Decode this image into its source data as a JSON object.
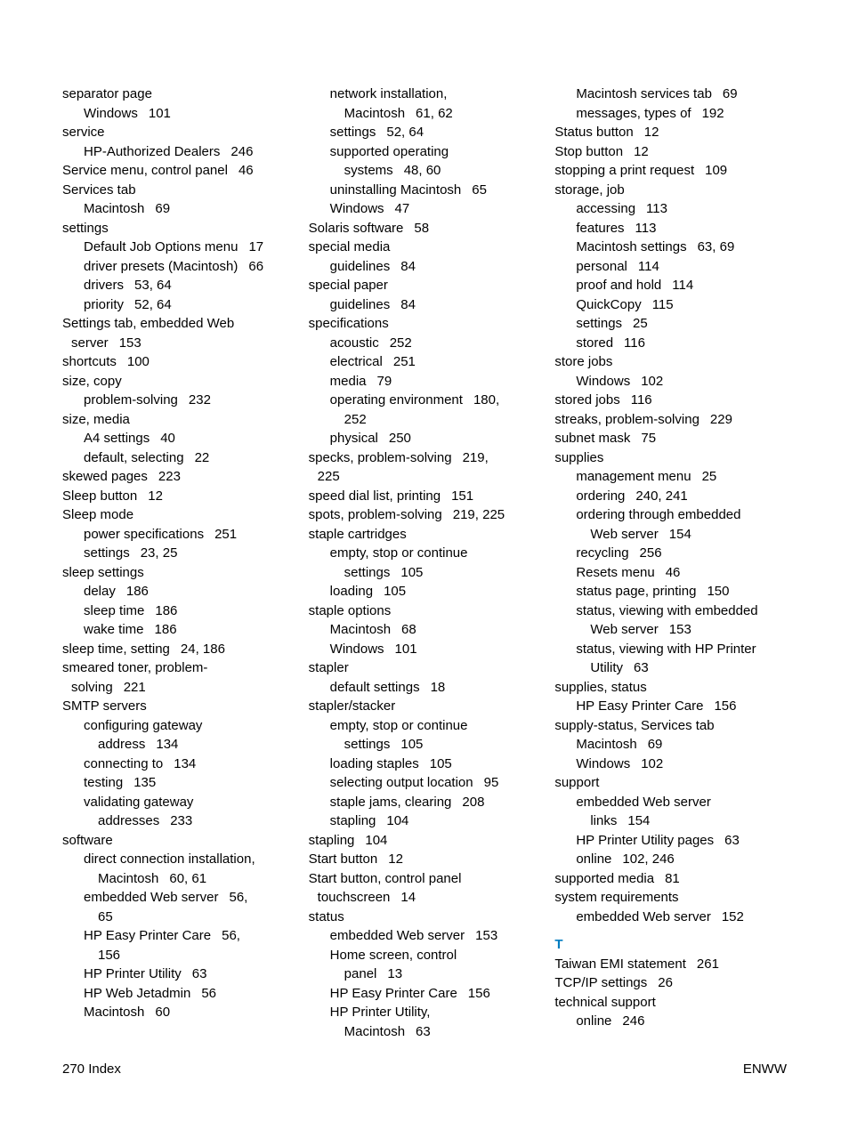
{
  "footer": {
    "left": "270   Index",
    "right": "ENWW"
  },
  "sections": {
    "T": "T"
  },
  "col1": [
    {
      "t": "separator page",
      "i": 0
    },
    {
      "t": "Windows",
      "p": "101",
      "i": 1
    },
    {
      "t": "service",
      "i": 0
    },
    {
      "t": "HP-Authorized Dealers",
      "p": "246",
      "i": 1
    },
    {
      "t": "Service menu, control panel",
      "p": "46",
      "i": 0
    },
    {
      "t": "Services tab",
      "i": 0
    },
    {
      "t": "Macintosh",
      "p": "69",
      "i": 1
    },
    {
      "t": "settings",
      "i": 0
    },
    {
      "t": "Default Job Options menu",
      "p": "17",
      "i": 1
    },
    {
      "t": "driver presets (Macintosh)",
      "p": "66",
      "i": 1
    },
    {
      "t": "drivers",
      "p": "53,  64",
      "i": 1
    },
    {
      "t": "priority",
      "p": "52,  64",
      "i": 1
    },
    {
      "t": "Settings tab, embedded Web",
      "i": 0
    },
    {
      "t": "server",
      "p": "153",
      "i": "1w"
    },
    {
      "t": "shortcuts",
      "p": "100",
      "i": 0
    },
    {
      "t": "size, copy",
      "i": 0
    },
    {
      "t": "problem-solving",
      "p": "232",
      "i": 1
    },
    {
      "t": "size, media",
      "i": 0
    },
    {
      "t": "A4 settings",
      "p": "40",
      "i": 1
    },
    {
      "t": "default, selecting",
      "p": "22",
      "i": 1
    },
    {
      "t": "skewed pages",
      "p": "223",
      "i": 0
    },
    {
      "t": "Sleep button",
      "p": "12",
      "i": 0
    },
    {
      "t": "Sleep mode",
      "i": 0
    },
    {
      "t": "power specifications",
      "p": "251",
      "i": 1
    },
    {
      "t": "settings",
      "p": "23,  25",
      "i": 1
    },
    {
      "t": "sleep settings",
      "i": 0
    },
    {
      "t": "delay",
      "p": "186",
      "i": 1
    },
    {
      "t": "sleep time",
      "p": "186",
      "i": 1
    },
    {
      "t": "wake time",
      "p": "186",
      "i": 1
    },
    {
      "t": "sleep time, setting",
      "p": "24,  186",
      "i": 0
    },
    {
      "t": "smeared toner, problem-",
      "i": 0
    },
    {
      "t": "solving",
      "p": "221",
      "i": "1w"
    },
    {
      "t": "SMTP servers",
      "i": 0
    },
    {
      "t": "configuring gateway",
      "i": 1
    },
    {
      "t": "address",
      "p": "134",
      "i": 2
    },
    {
      "t": "connecting to",
      "p": "134",
      "i": 1
    },
    {
      "t": "testing",
      "p": "135",
      "i": 1
    },
    {
      "t": "validating gateway",
      "i": 1
    },
    {
      "t": "addresses",
      "p": "233",
      "i": 2
    },
    {
      "t": "software",
      "i": 0
    },
    {
      "t": "direct connection installation,",
      "i": 1
    },
    {
      "t": "Macintosh",
      "p": "60,  61",
      "i": 2
    },
    {
      "t": "embedded Web server",
      "p": "56,",
      "i": 1
    },
    {
      "t": "65",
      "i": 2
    },
    {
      "t": "HP Easy Printer Care",
      "p": "56,",
      "i": 1
    },
    {
      "t": "156",
      "i": 2
    },
    {
      "t": "HP Printer Utility",
      "p": "63",
      "i": 1
    },
    {
      "t": "HP Web Jetadmin",
      "p": "56",
      "i": 1
    },
    {
      "t": "Macintosh",
      "p": "60",
      "i": 1
    }
  ],
  "col2": [
    {
      "t": "network installation,",
      "i": 1
    },
    {
      "t": "Macintosh",
      "p": "61,  62",
      "i": 2
    },
    {
      "t": "settings",
      "p": "52,  64",
      "i": 1
    },
    {
      "t": "supported operating",
      "i": 1
    },
    {
      "t": "systems",
      "p": "48,  60",
      "i": 2
    },
    {
      "t": "uninstalling Macintosh",
      "p": "65",
      "i": 1
    },
    {
      "t": "Windows",
      "p": "47",
      "i": 1
    },
    {
      "t": "Solaris software",
      "p": "58",
      "i": 0
    },
    {
      "t": "special media",
      "i": 0
    },
    {
      "t": "guidelines",
      "p": "84",
      "i": 1
    },
    {
      "t": "special paper",
      "i": 0
    },
    {
      "t": "guidelines",
      "p": "84",
      "i": 1
    },
    {
      "t": "specifications",
      "i": 0
    },
    {
      "t": "acoustic",
      "p": "252",
      "i": 1
    },
    {
      "t": "electrical",
      "p": "251",
      "i": 1
    },
    {
      "t": "media",
      "p": "79",
      "i": 1
    },
    {
      "t": "operating environment",
      "p": "180,",
      "i": 1
    },
    {
      "t": "252",
      "i": 2
    },
    {
      "t": "physical",
      "p": "250",
      "i": 1
    },
    {
      "t": "specks, problem-solving",
      "p": "219,",
      "i": 0
    },
    {
      "t": "225",
      "i": "1w"
    },
    {
      "t": "speed dial list, printing",
      "p": "151",
      "i": 0
    },
    {
      "t": "spots, problem-solving",
      "p": "219,  225",
      "i": 0
    },
    {
      "t": "staple cartridges",
      "i": 0
    },
    {
      "t": "empty, stop or continue",
      "i": 1
    },
    {
      "t": "settings",
      "p": "105",
      "i": 2
    },
    {
      "t": "loading",
      "p": "105",
      "i": 1
    },
    {
      "t": "staple options",
      "i": 0
    },
    {
      "t": "Macintosh",
      "p": "68",
      "i": 1
    },
    {
      "t": "Windows",
      "p": "101",
      "i": 1
    },
    {
      "t": "stapler",
      "i": 0
    },
    {
      "t": "default settings",
      "p": "18",
      "i": 1
    },
    {
      "t": "stapler/stacker",
      "i": 0
    },
    {
      "t": "empty, stop or continue",
      "i": 1
    },
    {
      "t": "settings",
      "p": "105",
      "i": 2
    },
    {
      "t": "loading staples",
      "p": "105",
      "i": 1
    },
    {
      "t": "selecting output location",
      "p": "95",
      "i": 1
    },
    {
      "t": "staple jams, clearing",
      "p": "208",
      "i": 1
    },
    {
      "t": "stapling",
      "p": "104",
      "i": 1
    },
    {
      "t": "stapling",
      "p": "104",
      "i": 0
    },
    {
      "t": "Start button",
      "p": "12",
      "i": 0
    },
    {
      "t": "Start button, control panel",
      "i": 0
    },
    {
      "t": "touchscreen",
      "p": "14",
      "i": "1w"
    },
    {
      "t": "status",
      "i": 0
    },
    {
      "t": "embedded Web server",
      "p": "153",
      "i": 1
    },
    {
      "t": "Home screen, control",
      "i": 1
    },
    {
      "t": "panel",
      "p": "13",
      "i": 2
    },
    {
      "t": "HP Easy Printer Care",
      "p": "156",
      "i": 1
    },
    {
      "t": "HP Printer Utility,",
      "i": 1
    },
    {
      "t": "Macintosh",
      "p": "63",
      "i": 2
    }
  ],
  "col3": [
    {
      "t": "Macintosh services tab",
      "p": "69",
      "i": 1
    },
    {
      "t": "messages, types of",
      "p": "192",
      "i": 1
    },
    {
      "t": "Status button",
      "p": "12",
      "i": 0
    },
    {
      "t": "Stop button",
      "p": "12",
      "i": 0
    },
    {
      "t": "stopping a print request",
      "p": "109",
      "i": 0
    },
    {
      "t": "storage, job",
      "i": 0
    },
    {
      "t": "accessing",
      "p": "113",
      "i": 1
    },
    {
      "t": "features",
      "p": "113",
      "i": 1
    },
    {
      "t": "Macintosh settings",
      "p": "63,  69",
      "i": 1
    },
    {
      "t": "personal",
      "p": "114",
      "i": 1
    },
    {
      "t": "proof and hold",
      "p": "114",
      "i": 1
    },
    {
      "t": "QuickCopy",
      "p": "115",
      "i": 1
    },
    {
      "t": "settings",
      "p": "25",
      "i": 1
    },
    {
      "t": "stored",
      "p": "116",
      "i": 1
    },
    {
      "t": "store jobs",
      "i": 0
    },
    {
      "t": "Windows",
      "p": "102",
      "i": 1
    },
    {
      "t": "stored jobs",
      "p": "116",
      "i": 0
    },
    {
      "t": "streaks, problem-solving",
      "p": "229",
      "i": 0
    },
    {
      "t": "subnet mask",
      "p": "75",
      "i": 0
    },
    {
      "t": "supplies",
      "i": 0
    },
    {
      "t": "management menu",
      "p": "25",
      "i": 1
    },
    {
      "t": "ordering",
      "p": "240,  241",
      "i": 1
    },
    {
      "t": "ordering through embedded",
      "i": 1
    },
    {
      "t": "Web server",
      "p": "154",
      "i": 2
    },
    {
      "t": "recycling",
      "p": "256",
      "i": 1
    },
    {
      "t": "Resets menu",
      "p": "46",
      "i": 1
    },
    {
      "t": "status page, printing",
      "p": "150",
      "i": 1
    },
    {
      "t": "status, viewing with embedded",
      "i": 1
    },
    {
      "t": "Web server",
      "p": "153",
      "i": 2
    },
    {
      "t": "status, viewing with HP Printer",
      "i": 1
    },
    {
      "t": "Utility",
      "p": "63",
      "i": 2
    },
    {
      "t": "supplies, status",
      "i": 0
    },
    {
      "t": "HP Easy Printer Care",
      "p": "156",
      "i": 1
    },
    {
      "t": "supply-status, Services tab",
      "i": 0
    },
    {
      "t": "Macintosh",
      "p": "69",
      "i": 1
    },
    {
      "t": "Windows",
      "p": "102",
      "i": 1
    },
    {
      "t": "support",
      "i": 0
    },
    {
      "t": "embedded Web server",
      "i": 1
    },
    {
      "t": "links",
      "p": "154",
      "i": 2
    },
    {
      "t": "HP Printer Utility pages",
      "p": "63",
      "i": 1
    },
    {
      "t": "online",
      "p": "102,  246",
      "i": 1
    },
    {
      "t": "supported media",
      "p": "81",
      "i": 0
    },
    {
      "t": "system requirements",
      "i": 0
    },
    {
      "t": "embedded Web server",
      "p": "152",
      "i": 1
    }
  ],
  "col3b": [
    {
      "t": "Taiwan EMI statement",
      "p": "261",
      "i": 0
    },
    {
      "t": "TCP/IP settings",
      "p": "26",
      "i": 0
    },
    {
      "t": "technical support",
      "i": 0
    },
    {
      "t": "online",
      "p": "246",
      "i": 1
    }
  ]
}
